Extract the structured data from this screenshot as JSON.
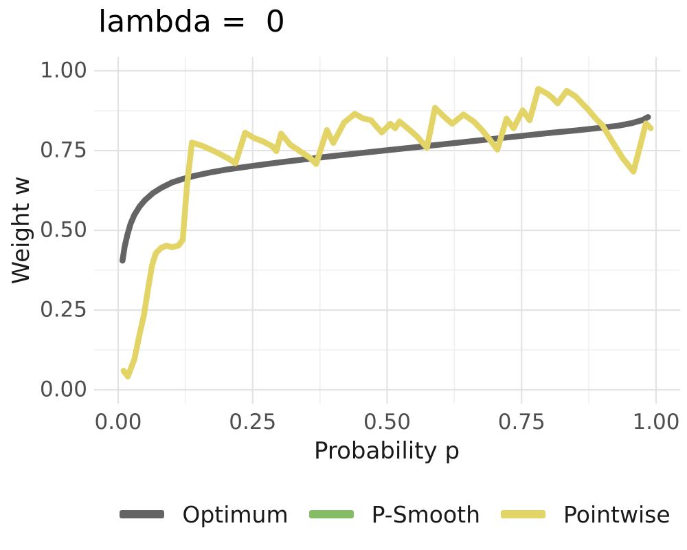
{
  "chart_data": {
    "type": "line",
    "title": "lambda =  0",
    "xlabel": "Probability p",
    "ylabel": "Weight w",
    "xlim": [
      0,
      1
    ],
    "ylim": [
      0,
      1
    ],
    "x_ticks": {
      "values": [
        0,
        0.25,
        0.5,
        0.75,
        1.0
      ],
      "labels": [
        "0.00",
        "0.25",
        "0.50",
        "0.75",
        "1.00"
      ]
    },
    "y_ticks": {
      "values": [
        0,
        0.25,
        0.5,
        0.75,
        1.0
      ],
      "labels": [
        "0.00",
        "0.25",
        "0.50",
        "0.75",
        "1.00"
      ]
    },
    "minor_gridlines_at": [
      0.125,
      0.375,
      0.625,
      0.875
    ],
    "grid": "major+minor light gray on white",
    "legend_position": "bottom-center",
    "series": [
      {
        "name": "Optimum",
        "color": "#646464",
        "line_width": 8.5,
        "shape": "smooth concave increasing curve",
        "points": [
          [
            0.008,
            0.405
          ],
          [
            0.012,
            0.448
          ],
          [
            0.017,
            0.485
          ],
          [
            0.023,
            0.52
          ],
          [
            0.03,
            0.548
          ],
          [
            0.04,
            0.575
          ],
          [
            0.05,
            0.595
          ],
          [
            0.065,
            0.617
          ],
          [
            0.08,
            0.633
          ],
          [
            0.1,
            0.65
          ],
          [
            0.12,
            0.661
          ],
          [
            0.14,
            0.67
          ],
          [
            0.17,
            0.681
          ],
          [
            0.2,
            0.69
          ],
          [
            0.25,
            0.702
          ],
          [
            0.3,
            0.713
          ],
          [
            0.35,
            0.723
          ],
          [
            0.4,
            0.733
          ],
          [
            0.45,
            0.742
          ],
          [
            0.5,
            0.751
          ],
          [
            0.55,
            0.76
          ],
          [
            0.6,
            0.769
          ],
          [
            0.65,
            0.778
          ],
          [
            0.7,
            0.787
          ],
          [
            0.75,
            0.796
          ],
          [
            0.8,
            0.805
          ],
          [
            0.85,
            0.813
          ],
          [
            0.9,
            0.822
          ],
          [
            0.93,
            0.828
          ],
          [
            0.955,
            0.836
          ],
          [
            0.975,
            0.846
          ],
          [
            0.985,
            0.855
          ]
        ]
      },
      {
        "name": "P-Smooth",
        "color": "#85BD67",
        "line_width": 8.5,
        "visible_in_plot": false,
        "points": []
      },
      {
        "name": "Pointwise",
        "color": "#E2D466",
        "line_width": 8.5,
        "shape": "jagged noisy pointwise estimate",
        "points": [
          [
            0.01,
            0.06
          ],
          [
            0.018,
            0.042
          ],
          [
            0.03,
            0.095
          ],
          [
            0.04,
            0.175
          ],
          [
            0.048,
            0.235
          ],
          [
            0.056,
            0.32
          ],
          [
            0.063,
            0.39
          ],
          [
            0.07,
            0.428
          ],
          [
            0.08,
            0.445
          ],
          [
            0.09,
            0.452
          ],
          [
            0.1,
            0.447
          ],
          [
            0.112,
            0.452
          ],
          [
            0.12,
            0.47
          ],
          [
            0.128,
            0.64
          ],
          [
            0.137,
            0.775
          ],
          [
            0.156,
            0.765
          ],
          [
            0.18,
            0.747
          ],
          [
            0.205,
            0.725
          ],
          [
            0.218,
            0.71
          ],
          [
            0.236,
            0.806
          ],
          [
            0.252,
            0.79
          ],
          [
            0.27,
            0.778
          ],
          [
            0.287,
            0.763
          ],
          [
            0.294,
            0.748
          ],
          [
            0.303,
            0.803
          ],
          [
            0.32,
            0.768
          ],
          [
            0.34,
            0.746
          ],
          [
            0.357,
            0.727
          ],
          [
            0.368,
            0.708
          ],
          [
            0.388,
            0.814
          ],
          [
            0.4,
            0.774
          ],
          [
            0.42,
            0.838
          ],
          [
            0.44,
            0.865
          ],
          [
            0.455,
            0.851
          ],
          [
            0.47,
            0.845
          ],
          [
            0.49,
            0.807
          ],
          [
            0.506,
            0.834
          ],
          [
            0.515,
            0.82
          ],
          [
            0.523,
            0.841
          ],
          [
            0.538,
            0.82
          ],
          [
            0.555,
            0.795
          ],
          [
            0.574,
            0.759
          ],
          [
            0.589,
            0.884
          ],
          [
            0.606,
            0.856
          ],
          [
            0.621,
            0.834
          ],
          [
            0.642,
            0.863
          ],
          [
            0.661,
            0.841
          ],
          [
            0.676,
            0.815
          ],
          [
            0.69,
            0.786
          ],
          [
            0.705,
            0.753
          ],
          [
            0.722,
            0.85
          ],
          [
            0.735,
            0.82
          ],
          [
            0.752,
            0.876
          ],
          [
            0.765,
            0.845
          ],
          [
            0.781,
            0.943
          ],
          [
            0.798,
            0.928
          ],
          [
            0.808,
            0.914
          ],
          [
            0.817,
            0.898
          ],
          [
            0.834,
            0.937
          ],
          [
            0.85,
            0.92
          ],
          [
            0.862,
            0.899
          ],
          [
            0.875,
            0.876
          ],
          [
            0.888,
            0.85
          ],
          [
            0.9,
            0.83
          ],
          [
            0.919,
            0.777
          ],
          [
            0.938,
            0.726
          ],
          [
            0.958,
            0.684
          ],
          [
            0.971,
            0.769
          ],
          [
            0.981,
            0.835
          ],
          [
            0.99,
            0.82
          ]
        ]
      }
    ]
  }
}
